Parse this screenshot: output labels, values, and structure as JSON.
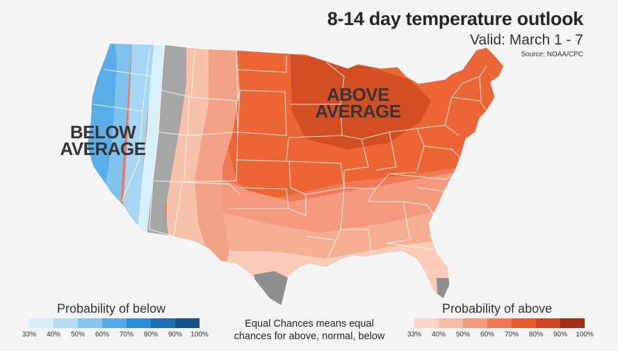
{
  "header": {
    "title": "8-14 day temperature outlook",
    "subtitle": "Valid: March 1 - 7",
    "source": "Source: NOAA/CPC"
  },
  "map_labels": {
    "below_line1": "BELOW",
    "below_line2": "AVERAGE",
    "above_line1": "ABOVE",
    "above_line2": "AVERAGE"
  },
  "legend": {
    "below": {
      "title": "Probability of below",
      "colors": [
        "#d6effc",
        "#b3def6",
        "#84c6ef",
        "#56a9e6",
        "#2a8ed8",
        "#1c6fb5",
        "#14538a"
      ],
      "ticks": [
        "33%",
        "40%",
        "50%",
        "60%",
        "70%",
        "80%",
        "90%",
        "100%"
      ]
    },
    "above": {
      "title": "Probability of above",
      "colors": [
        "#fbd6c6",
        "#f8bca4",
        "#f39a7d",
        "#ee7a55",
        "#e85a2e",
        "#cf421f",
        "#a22e14"
      ],
      "ticks": [
        "33%",
        "40%",
        "50%",
        "60%",
        "70%",
        "80%",
        "90%",
        "100%"
      ]
    },
    "equal_chances_line1": "Equal Chances means equal",
    "equal_chances_line2": "chances for above, normal, below",
    "equal_color": "#a6a6a6"
  }
}
